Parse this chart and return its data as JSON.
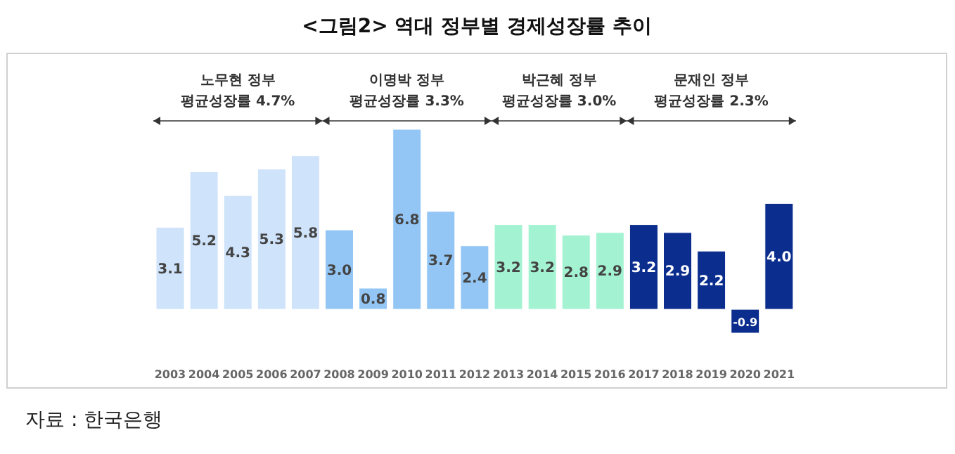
{
  "chart_data": {
    "type": "bar",
    "title": "<그림2> 역대 정부별 경제성장률 추이",
    "categories": [
      "2003",
      "2004",
      "2005",
      "2006",
      "2007",
      "2008",
      "2009",
      "2010",
      "2011",
      "2012",
      "2013",
      "2014",
      "2015",
      "2016",
      "2017",
      "2018",
      "2019",
      "2020",
      "2021"
    ],
    "values": [
      3.1,
      5.2,
      4.3,
      5.3,
      5.8,
      3.0,
      0.8,
      6.8,
      3.7,
      2.4,
      3.2,
      3.2,
      2.8,
      2.9,
      3.2,
      2.9,
      2.2,
      -0.9,
      4.0
    ],
    "colors": [
      "#cfe3fb",
      "#cfe3fb",
      "#cfe3fb",
      "#cfe3fb",
      "#cfe3fb",
      "#93c6f5",
      "#93c6f5",
      "#93c6f5",
      "#93c6f5",
      "#93c6f5",
      "#a3f3d2",
      "#a3f3d2",
      "#a3f3d2",
      "#a3f3d2",
      "#0b2e8e",
      "#0b2e8e",
      "#0b2e8e",
      "#0b2e8e",
      "#0b2e8e"
    ],
    "value_labels": [
      "3.1",
      "5.2",
      "4.3",
      "5.3",
      "5.8",
      "3.0",
      "0.8",
      "6.8",
      "3.7",
      "2.4",
      "3.2",
      "3.2",
      "2.8",
      "2.9",
      "3.2",
      "2.9",
      "2.2",
      "-0.9",
      "4.0"
    ],
    "annotations": [
      "노무현 정부\n평균성장률 4.7%",
      "이명박 정부\n평균성장률 3.3%",
      "박근혜 정부\n평균성장률 3.0%",
      "문재인 정부\n평균성장률 2.3%",
      "자료 : 한국은행"
    ]
  }
}
